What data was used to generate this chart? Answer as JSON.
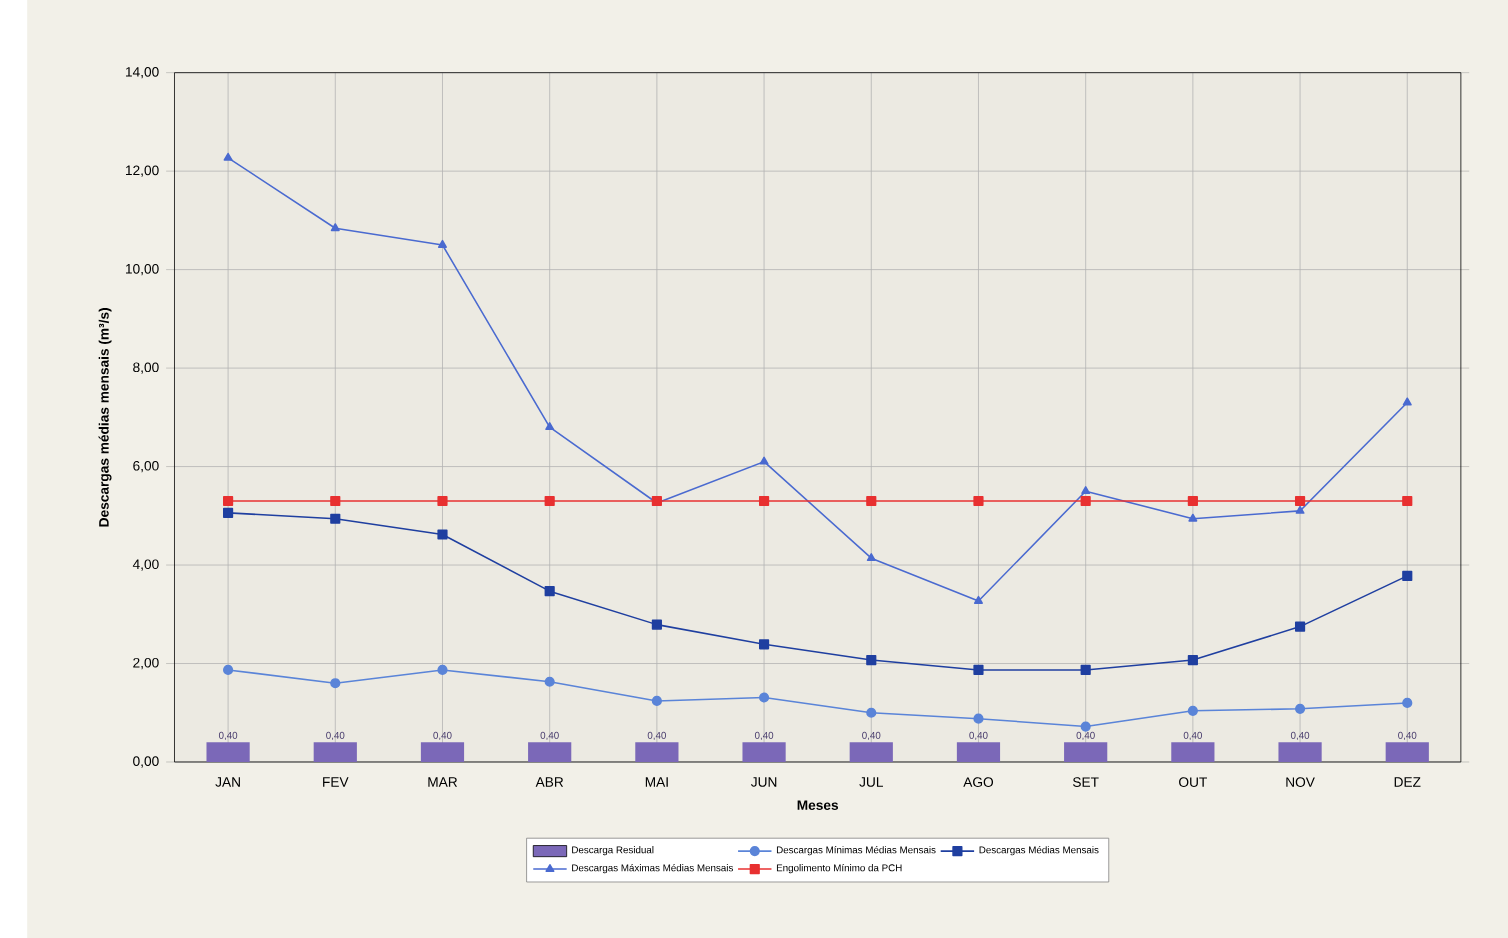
{
  "chart_data": {
    "type": "line",
    "xlabel": "Meses",
    "ylabel": "Descargas médias mensais (m³/s)",
    "categories": [
      "JAN",
      "FEV",
      "MAR",
      "ABR",
      "MAI",
      "JUN",
      "JUL",
      "AGO",
      "SET",
      "OUT",
      "NOV",
      "DEZ"
    ],
    "series": [
      {
        "name": "Descarga Residual",
        "type": "bar",
        "color": "#7b68b8",
        "values": [
          0.4,
          0.4,
          0.4,
          0.4,
          0.4,
          0.4,
          0.4,
          0.4,
          0.4,
          0.4,
          0.4,
          0.4
        ],
        "value_labels": [
          "0,40",
          "0,40",
          "0,40",
          "0,40",
          "0,40",
          "0,40",
          "0,40",
          "0,40",
          "0,40",
          "0,40",
          "0,40",
          "0,40"
        ]
      },
      {
        "name": "Descargas Mínimas Médias Mensais",
        "marker": "circle",
        "color": "#5a84d8",
        "values": [
          1.87,
          1.6,
          1.87,
          1.63,
          1.24,
          1.31,
          1.0,
          0.88,
          0.72,
          1.04,
          1.08,
          1.2
        ]
      },
      {
        "name": "Descargas Médias Mensais",
        "marker": "square",
        "color": "#1f3fa0",
        "values": [
          5.06,
          4.94,
          4.62,
          3.47,
          2.79,
          2.39,
          2.07,
          1.87,
          1.87,
          2.07,
          2.75,
          3.78
        ]
      },
      {
        "name": "Descargas Máximas Médias Mensais",
        "marker": "triangle",
        "color": "#4a6ad0",
        "values": [
          12.27,
          10.84,
          10.5,
          6.8,
          5.26,
          6.1,
          4.14,
          3.27,
          5.5,
          4.94,
          5.1,
          7.3
        ]
      },
      {
        "name": "Engolimento Mínimo da PCH",
        "marker": "square",
        "color": "#e83030",
        "values": [
          5.3,
          5.3,
          5.3,
          5.3,
          5.3,
          5.3,
          5.3,
          5.3,
          5.3,
          5.3,
          5.3,
          5.3
        ]
      }
    ],
    "ylim": [
      0,
      14
    ],
    "yticks": [
      {
        "value": 0,
        "label": "0,00"
      },
      {
        "value": 2,
        "label": "2,00"
      },
      {
        "value": 4,
        "label": "4,00"
      },
      {
        "value": 6,
        "label": "6,00"
      },
      {
        "value": 8,
        "label": "8,00"
      },
      {
        "value": 10,
        "label": "10,00"
      },
      {
        "value": 12,
        "label": "12,00"
      },
      {
        "value": 14,
        "label": "14,00"
      }
    ],
    "grid": true,
    "legend": "bottom"
  }
}
